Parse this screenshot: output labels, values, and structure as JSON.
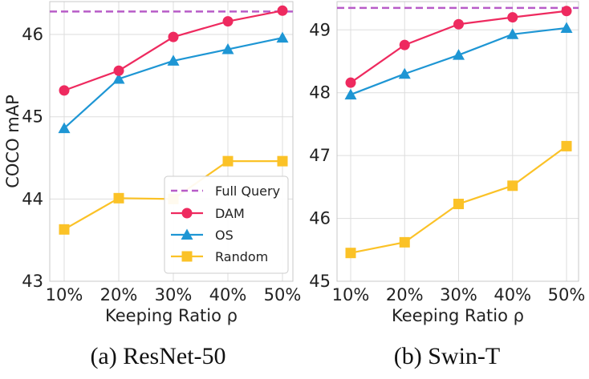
{
  "colors": {
    "full_query": "#b85cc8",
    "dam": "#ee2a5f",
    "os": "#1e96d4",
    "random": "#fbc227",
    "grid": "#dddddd",
    "spine": "#c8c8c8"
  },
  "icons": {
    "dam_marker": "circle",
    "os_marker": "triangle",
    "random_marker": "square"
  },
  "chart_data": [
    {
      "type": "line",
      "caption": "(a)  ResNet-50",
      "xlabel": "Keeping Ratio ρ",
      "ylabel": "COCO mAP",
      "categories": [
        "10%",
        "20%",
        "30%",
        "40%",
        "50%"
      ],
      "ylim": [
        43,
        46.4
      ],
      "yticks": [
        "43",
        "44",
        "45",
        "46"
      ],
      "grid": true,
      "legend": {
        "position": "lower-right",
        "entries": [
          "Full Query",
          "DAM",
          "OS",
          "Random"
        ]
      },
      "hline": {
        "name": "Full Query",
        "value": 46.28
      },
      "series": [
        {
          "name": "DAM",
          "values": [
            45.32,
            45.56,
            45.97,
            46.16,
            46.29
          ]
        },
        {
          "name": "OS",
          "values": [
            44.86,
            45.46,
            45.68,
            45.82,
            45.96
          ]
        },
        {
          "name": "Random",
          "values": [
            43.63,
            44.01,
            44.0,
            44.46,
            44.46
          ]
        }
      ]
    },
    {
      "type": "line",
      "caption": "(b)  Swin-T",
      "xlabel": "Keeping Ratio ρ",
      "ylabel": "",
      "categories": [
        "10%",
        "20%",
        "30%",
        "40%",
        "50%"
      ],
      "ylim": [
        45,
        49.45
      ],
      "yticks": [
        "45",
        "46",
        "47",
        "48",
        "49"
      ],
      "grid": true,
      "legend": null,
      "hline": {
        "name": "Full Query",
        "value": 49.35
      },
      "series": [
        {
          "name": "DAM",
          "values": [
            48.16,
            48.76,
            49.09,
            49.2,
            49.3
          ]
        },
        {
          "name": "OS",
          "values": [
            47.97,
            48.3,
            48.6,
            48.93,
            49.03
          ]
        },
        {
          "name": "Random",
          "values": [
            45.45,
            45.62,
            46.23,
            46.52,
            47.15
          ]
        }
      ]
    }
  ]
}
